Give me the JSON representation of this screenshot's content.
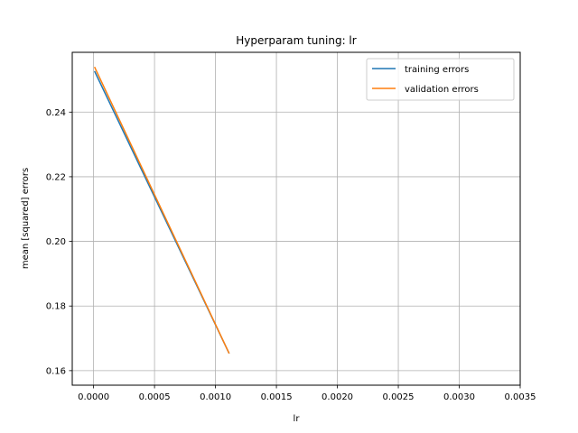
{
  "chart_data": {
    "type": "line",
    "title": "Hyperparam tuning: lr",
    "xlabel": "lr",
    "ylabel": "mean [squared] errors",
    "xlim": [
      -0.000175,
      0.0035
    ],
    "ylim": [
      0.1555,
      0.2585
    ],
    "xticks": [
      0.0,
      0.0005,
      0.001,
      0.0015,
      0.002,
      0.0025,
      0.003,
      0.0035
    ],
    "xtick_labels": [
      "0.0000",
      "0.0005",
      "0.0010",
      "0.0015",
      "0.0020",
      "0.0025",
      "0.0030",
      "0.0035"
    ],
    "yticks": [
      0.16,
      0.18,
      0.2,
      0.22,
      0.24
    ],
    "ytick_labels": [
      "0.16",
      "0.18",
      "0.20",
      "0.22",
      "0.24"
    ],
    "grid": true,
    "legend_position": "top-right",
    "series": [
      {
        "name": "training errors",
        "color": "#1f77b4",
        "x": [
          1e-05,
          0.00111
        ],
        "y": [
          0.2525,
          0.1655
        ]
      },
      {
        "name": "validation errors",
        "color": "#ff7f0e",
        "x": [
          1e-05,
          0.00111
        ],
        "y": [
          0.2538,
          0.1655
        ]
      }
    ]
  }
}
